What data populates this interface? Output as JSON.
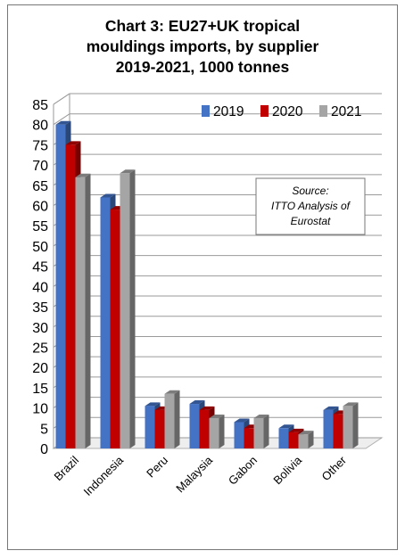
{
  "chart_data": {
    "type": "bar",
    "title_lines": [
      "Chart 3: EU27+UK tropical",
      "mouldings imports, by supplier",
      "2019-2021, 1000 tonnes"
    ],
    "categories": [
      "Brazil",
      "Indonesia",
      "Peru",
      "Malaysia",
      "Gabon",
      "Bolivia",
      "Other"
    ],
    "series": [
      {
        "name": "2019",
        "color": "#4472c4",
        "values": [
          80,
          62,
          10.5,
          11,
          6.5,
          5,
          9.5
        ]
      },
      {
        "name": "2020",
        "color": "#c00000",
        "values": [
          75,
          59,
          9.5,
          9.5,
          5,
          4,
          8.5
        ]
      },
      {
        "name": "2021",
        "color": "#a5a5a5",
        "values": [
          67,
          68,
          13.5,
          7.5,
          7.5,
          3.5,
          10.5
        ]
      }
    ],
    "ylim": [
      0,
      85
    ],
    "yticks": [
      0,
      5,
      10,
      15,
      20,
      25,
      30,
      35,
      40,
      45,
      50,
      55,
      60,
      65,
      70,
      75,
      80,
      85
    ],
    "grid": true,
    "legend_position": "top-right",
    "source_note_lines": [
      "Source:",
      "ITTO Analysis of",
      "Eurostat"
    ]
  }
}
